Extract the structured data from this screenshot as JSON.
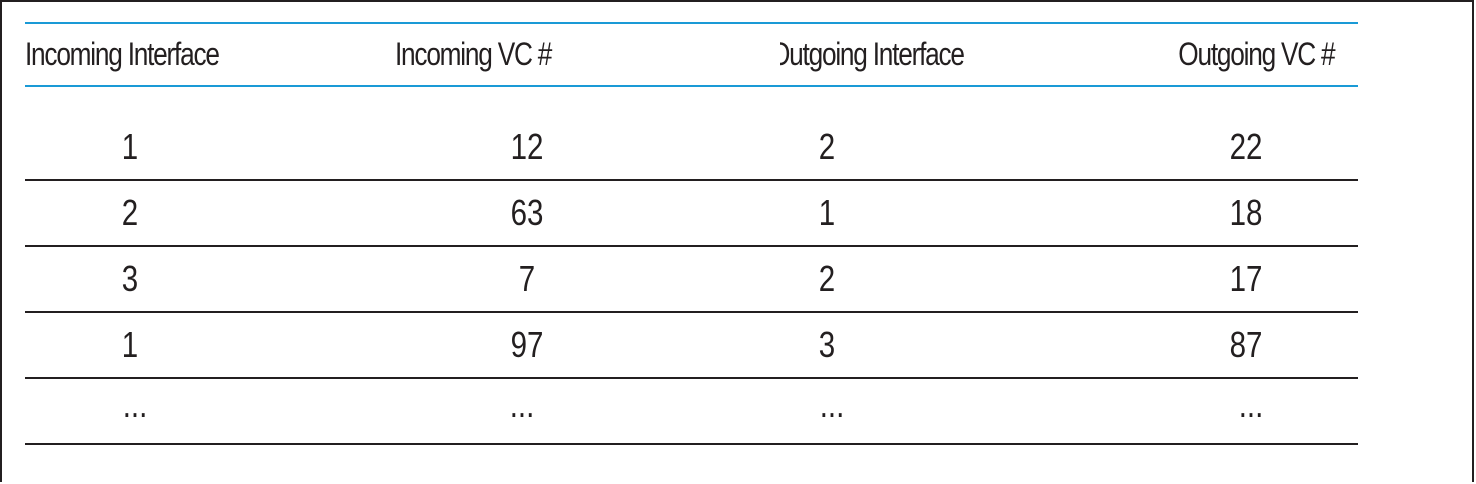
{
  "table": {
    "headers": [
      "Incoming Interface",
      "Incoming VC #",
      "Outgoing Interface",
      "Outgoing VC #"
    ],
    "rows": [
      [
        "1",
        "12",
        "2",
        "22"
      ],
      [
        "2",
        "63",
        "1",
        "18"
      ],
      [
        "3",
        "7",
        "2",
        "17"
      ],
      [
        "1",
        "97",
        "3",
        "87"
      ],
      [
        "...",
        "...",
        "...",
        "..."
      ]
    ]
  },
  "colors": {
    "header_rule": "#1a9ad6",
    "row_rule": "#231f20",
    "text": "#231f20"
  }
}
